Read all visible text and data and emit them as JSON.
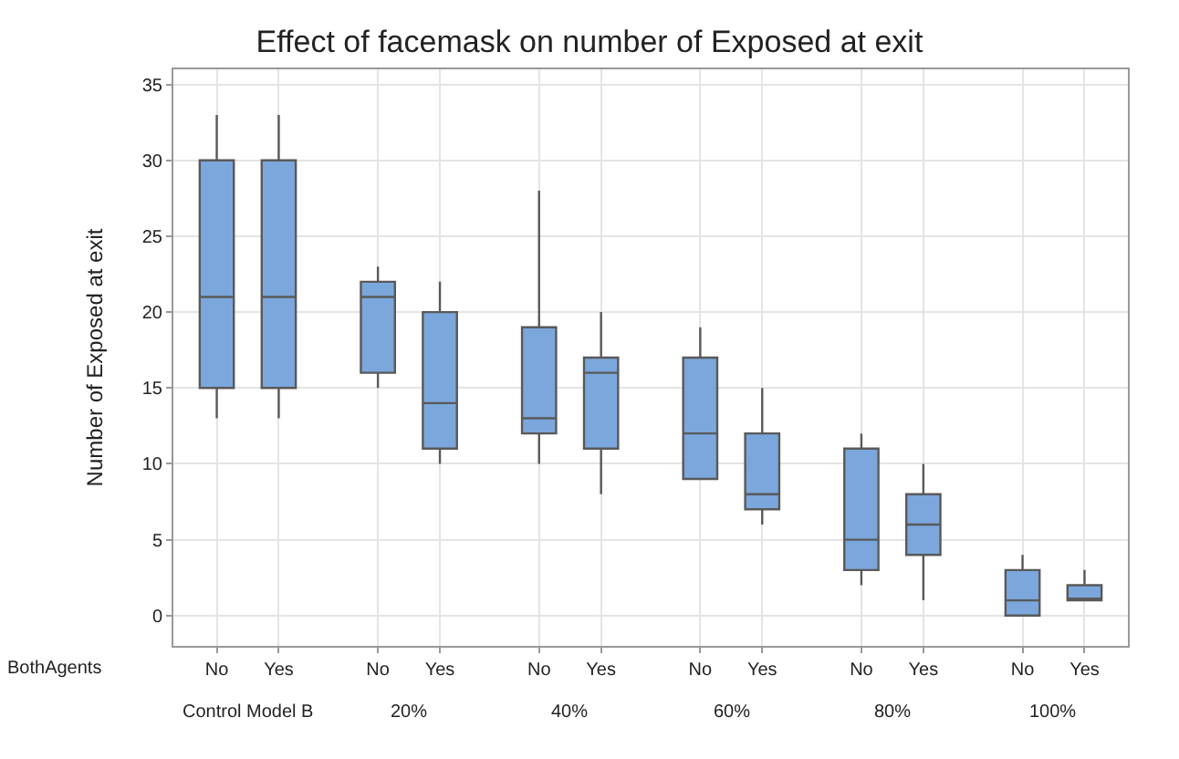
{
  "chart_data": {
    "type": "box",
    "title": "Effect of facemask on number of Exposed at exit",
    "ylabel": "Number of Exposed at exit",
    "categories": [
      "No",
      "Yes",
      "No",
      "Yes",
      "No",
      "Yes",
      "No",
      "Yes",
      "No",
      "Yes",
      "No",
      "Yes"
    ],
    "annotations": [
      "BothAgents",
      "Control Model B",
      "20%",
      "40%",
      "60%",
      "80%",
      "100%"
    ],
    "color": "#7ba7dc",
    "boxes": [
      {
        "low": 13,
        "q1": 15,
        "median": 21,
        "q3": 30,
        "high": 33
      },
      {
        "low": 13,
        "q1": 15,
        "median": 21,
        "q3": 30,
        "high": 33
      },
      {
        "low": 15,
        "q1": 16,
        "median": 21,
        "q3": 22,
        "high": 23
      },
      {
        "low": 10,
        "q1": 11,
        "median": 14,
        "q3": 20,
        "high": 22
      },
      {
        "low": 10,
        "q1": 12,
        "median": 13,
        "q3": 19,
        "high": 28
      },
      {
        "low": 8,
        "q1": 11,
        "median": 16,
        "q3": 17,
        "high": 20
      },
      {
        "low": 9,
        "q1": 9,
        "median": 12,
        "q3": 17,
        "high": 19
      },
      {
        "low": 6,
        "q1": 7,
        "median": 8,
        "q3": 12,
        "high": 15
      },
      {
        "low": 2,
        "q1": 3,
        "median": 5,
        "q3": 11,
        "high": 12
      },
      {
        "low": 1,
        "q1": 4,
        "median": 6,
        "q3": 8,
        "high": 10
      },
      {
        "low": 0,
        "q1": 0,
        "median": 1,
        "q3": 3,
        "high": 4
      },
      {
        "low": 1,
        "q1": 1,
        "median": 1,
        "q3": 2,
        "high": 3
      }
    ],
    "ylim": [
      -2,
      36
    ],
    "yticks": [
      0,
      5,
      10,
      15,
      20,
      25,
      30,
      35
    ],
    "grid": true
  }
}
